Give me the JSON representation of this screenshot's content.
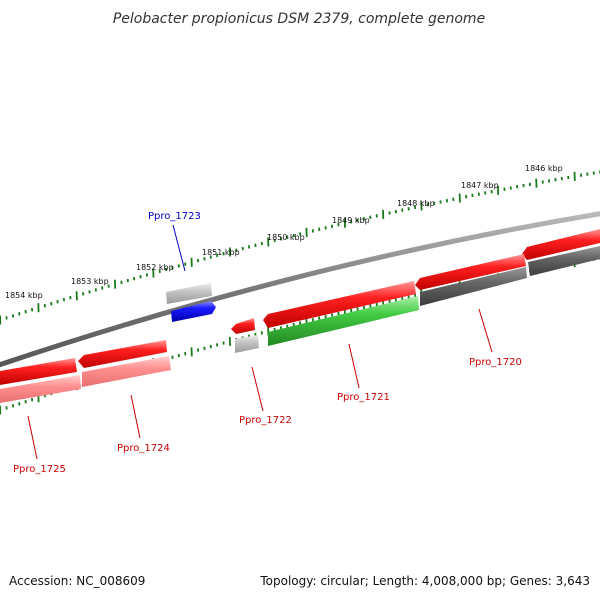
{
  "title": "Pelobacter propionicus DSM 2379, complete genome",
  "footer": {
    "accession": "Accession: NC_008609",
    "topology": "Topology: circular; Length: 4,008,000 bp; Genes: 3,643"
  },
  "colors": {
    "forward_gene": "#ee0000",
    "forward_gene_shadow": "#ff8a8a",
    "reverse_gene": "#0000ee",
    "green_gene": "#33bb33",
    "backbone": "#777777",
    "tick": "#1a7a1a",
    "label_red": "#cc0000",
    "label_blue": "#0000cc"
  },
  "kbp_labels": [
    "1846 kbp",
    "1847 kbp",
    "1848 kbp",
    "1849 kbp",
    "1850 kbp",
    "1851 kbp",
    "1852 kbp",
    "1853 kbp",
    "1854 kbp"
  ],
  "genes": [
    {
      "id": "ppro-1720",
      "label": "Ppro_1720",
      "label_color": "red"
    },
    {
      "id": "ppro-1721",
      "label": "Ppro_1721",
      "label_color": "red"
    },
    {
      "id": "ppro-1722",
      "label": "Ppro_1722",
      "label_color": "red"
    },
    {
      "id": "ppro-1723",
      "label": "Ppro_1723",
      "label_color": "blue"
    },
    {
      "id": "ppro-1724",
      "label": "Ppro_1724",
      "label_color": "red"
    },
    {
      "id": "ppro-1725",
      "label": "Ppro_1725",
      "label_color": "red"
    }
  ]
}
